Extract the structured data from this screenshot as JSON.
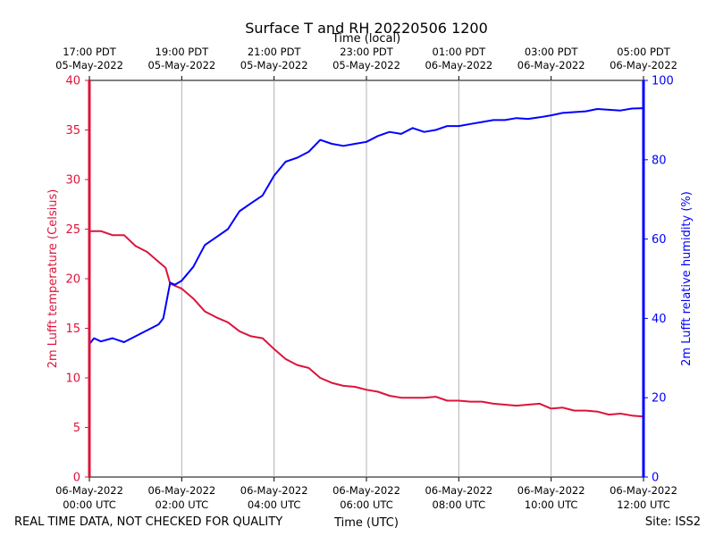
{
  "chart_data": {
    "type": "line",
    "title": "Surface T and RH 20220506 1200",
    "top_axis_label": "Time (local)",
    "bottom_axis_label": "Time (UTC)",
    "footer_left": "REAL TIME DATA, NOT CHECKED FOR QUALITY",
    "footer_right": "Site: ISS2",
    "x_range_hours": [
      0,
      12
    ],
    "x_ticks_hours": [
      0,
      2,
      4,
      6,
      8,
      10,
      12
    ],
    "utc_tick_labels": [
      [
        "06-May-2022",
        "00:00 UTC"
      ],
      [
        "06-May-2022",
        "02:00 UTC"
      ],
      [
        "06-May-2022",
        "04:00 UTC"
      ],
      [
        "06-May-2022",
        "06:00 UTC"
      ],
      [
        "06-May-2022",
        "08:00 UTC"
      ],
      [
        "06-May-2022",
        "10:00 UTC"
      ],
      [
        "06-May-2022",
        "12:00 UTC"
      ]
    ],
    "local_tick_labels": [
      [
        "17:00 PDT",
        "05-May-2022"
      ],
      [
        "19:00 PDT",
        "05-May-2022"
      ],
      [
        "21:00 PDT",
        "05-May-2022"
      ],
      [
        "23:00 PDT",
        "05-May-2022"
      ],
      [
        "01:00 PDT",
        "06-May-2022"
      ],
      [
        "03:00 PDT",
        "06-May-2022"
      ],
      [
        "05:00 PDT",
        "06-May-2022"
      ]
    ],
    "left_axis": {
      "label": "2m Lufft temperature (Celsius)",
      "range": [
        0,
        40
      ],
      "ticks": [
        0,
        5,
        10,
        15,
        20,
        25,
        30,
        35,
        40
      ],
      "color": "#dc143c"
    },
    "right_axis": {
      "label": "2m Lufft relative humidity (%)",
      "range": [
        0,
        100
      ],
      "ticks": [
        0,
        20,
        40,
        60,
        80,
        100
      ],
      "color": "#0000ff"
    },
    "grid": "vertical",
    "series": [
      {
        "name": "temperature",
        "axis": "left",
        "color": "#dc143c",
        "x_hours": [
          0,
          0.25,
          0.5,
          0.75,
          1,
          1.25,
          1.5,
          1.65,
          1.75,
          1.85,
          2,
          2.25,
          2.5,
          2.75,
          3,
          3.25,
          3.5,
          3.75,
          4,
          4.25,
          4.5,
          4.75,
          5,
          5.25,
          5.5,
          5.75,
          6,
          6.25,
          6.5,
          6.75,
          7,
          7.25,
          7.5,
          7.75,
          8,
          8.25,
          8.5,
          8.75,
          9,
          9.25,
          9.5,
          9.75,
          10,
          10.25,
          10.5,
          10.75,
          11,
          11.25,
          11.5,
          11.75,
          12
        ],
        "values": [
          24.8,
          24.8,
          24.4,
          24.4,
          23.3,
          22.7,
          21.7,
          21.1,
          19.5,
          19.3,
          19.0,
          18.0,
          16.7,
          16.1,
          15.6,
          14.7,
          14.2,
          14.0,
          12.9,
          11.9,
          11.3,
          11.0,
          10.0,
          9.5,
          9.2,
          9.1,
          8.8,
          8.6,
          8.2,
          8.0,
          8.0,
          8.0,
          8.1,
          7.7,
          7.7,
          7.6,
          7.6,
          7.4,
          7.3,
          7.2,
          7.3,
          7.4,
          6.9,
          7.0,
          6.7,
          6.7,
          6.6,
          6.3,
          6.4,
          6.2,
          6.1
        ]
      },
      {
        "name": "relative humidity",
        "axis": "right",
        "color": "#0000ff",
        "x_hours": [
          0,
          0.1,
          0.25,
          0.5,
          0.75,
          1,
          1.25,
          1.5,
          1.6,
          1.65,
          1.7,
          1.75,
          1.85,
          2,
          2.25,
          2.5,
          2.75,
          3,
          3.25,
          3.5,
          3.75,
          4,
          4.25,
          4.5,
          4.75,
          5,
          5.25,
          5.5,
          5.75,
          6,
          6.25,
          6.5,
          6.75,
          7,
          7.25,
          7.5,
          7.75,
          8,
          8.25,
          8.5,
          8.75,
          9,
          9.25,
          9.5,
          9.75,
          10,
          10.25,
          10.5,
          10.75,
          11,
          11.25,
          11.5,
          11.75,
          12
        ],
        "values": [
          33.5,
          35.0,
          34.2,
          35.0,
          34.0,
          35.5,
          37.0,
          38.5,
          40.0,
          43.0,
          46.0,
          49.0,
          48.5,
          49.5,
          53.0,
          58.5,
          60.5,
          62.5,
          67.0,
          69.0,
          71.0,
          76.0,
          79.5,
          80.5,
          82.0,
          85.0,
          84.0,
          83.5,
          84.0,
          84.5,
          86.0,
          87.0,
          86.5,
          88.0,
          87.0,
          87.5,
          88.5,
          88.5,
          89.0,
          89.5,
          90.0,
          90.0,
          90.5,
          90.3,
          90.7,
          91.2,
          91.8,
          92.0,
          92.2,
          92.8,
          92.6,
          92.4,
          92.9,
          93.0
        ]
      }
    ]
  }
}
